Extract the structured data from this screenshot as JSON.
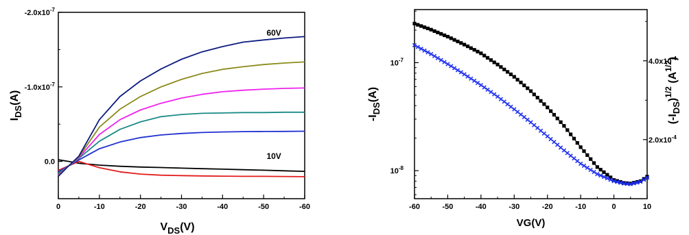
{
  "chart_data": [
    {
      "type": "line",
      "xlabel_main": "V",
      "xlabel_sub": "DS",
      "xlabel_unit": "(V)",
      "ylabel_main": "I",
      "ylabel_sub": "DS",
      "ylabel_unit": "(A)",
      "xlim": [
        0,
        -60
      ],
      "ylim": [
        5e-08,
        -2e-07
      ],
      "x_ticks": [
        {
          "value": 0,
          "label": "0"
        },
        {
          "value": -10,
          "label": "-10"
        },
        {
          "value": -20,
          "label": "-20"
        },
        {
          "value": -30,
          "label": "-30"
        },
        {
          "value": -40,
          "label": "-40"
        },
        {
          "value": -50,
          "label": "-50"
        },
        {
          "value": -60,
          "label": "-60"
        }
      ],
      "y_ticks": [
        {
          "value": -2e-07,
          "label": "-2.0x10",
          "exp": "-7"
        },
        {
          "value": -1e-07,
          "label": "-1.0x10",
          "exp": "-7"
        },
        {
          "value": 0,
          "label": "0.0",
          "exp": ""
        }
      ],
      "annotations": [
        {
          "text": "60V",
          "x": -52.5,
          "y": -1.725e-07
        },
        {
          "text": "10V",
          "x": -52.5,
          "y": -7.2e-09
        }
      ],
      "x": [
        0,
        -2.5,
        -5,
        -10,
        -15,
        -20,
        -25,
        -30,
        -35,
        -40,
        -45,
        -50,
        -55,
        -60
      ],
      "series": [
        {
          "color": "#000000",
          "values": [
            -2.2e-09,
            0.0,
            2.5e-09,
            5e-09,
            6.5e-09,
            7.5e-09,
            8.2e-09,
            9e-09,
            9.7e-09,
            1.04e-08,
            1.11e-08,
            1.18e-08,
            1.26e-08,
            1.33e-08
          ]
        },
        {
          "color": "#e31a1c",
          "values": [
            1.2e-08,
            6e-09,
            0.0,
            8.5e-09,
            1.4e-08,
            1.7e-08,
            1.85e-08,
            1.9e-08,
            1.95e-08,
            1.98e-08,
            2e-08,
            2e-08,
            2.02e-08,
            2.05e-08
          ]
        },
        {
          "color": "#1f2fd0",
          "values": [
            1.4e-08,
            6e-09,
            -2e-09,
            -1.7e-08,
            -2.6e-08,
            -3.2e-08,
            -3.55e-08,
            -3.75e-08,
            -3.88e-08,
            -3.95e-08,
            -4e-08,
            -4.02e-08,
            -4.03e-08,
            -4.05e-08
          ]
        },
        {
          "color": "#1a8a86",
          "values": [
            1.6e-08,
            6e-09,
            -4e-09,
            -2.7e-08,
            -4.3e-08,
            -5.3e-08,
            -6e-08,
            -6.3e-08,
            -6.45e-08,
            -6.5e-08,
            -6.55e-08,
            -6.55e-08,
            -6.6e-08,
            -6.6e-08
          ]
        },
        {
          "color": "#ee22ee",
          "values": [
            1.8e-08,
            6e-09,
            -5e-09,
            -3.6e-08,
            -5.6e-08,
            -6.9e-08,
            -7.8e-08,
            -8.5e-08,
            -9e-08,
            -9.35e-08,
            -9.55e-08,
            -9.7e-08,
            -9.8e-08,
            -9.85e-08
          ]
        },
        {
          "color": "#8b8a1a",
          "values": [
            1.9e-08,
            6e-09,
            -6e-09,
            -4.6e-08,
            -7e-08,
            -8.7e-08,
            -1e-07,
            -1.1e-07,
            -1.18e-07,
            -1.235e-07,
            -1.27e-07,
            -1.3e-07,
            -1.32e-07,
            -1.335e-07
          ]
        },
        {
          "color": "#0b1a7e",
          "values": [
            2e-08,
            6e-09,
            -7e-09,
            -5.6e-08,
            -8.7e-08,
            -1.08e-07,
            -1.24e-07,
            -1.37e-07,
            -1.47e-07,
            -1.54e-07,
            -1.6e-07,
            -1.63e-07,
            -1.655e-07,
            -1.675e-07
          ]
        }
      ]
    },
    {
      "type": "scatter",
      "xlabel": "VG(V)",
      "ylabel_main": "-I",
      "ylabel_sub": "DS",
      "ylabel_unit": "(A)",
      "y2label_open": "(-I",
      "y2label_sub": "DS",
      "y2label_close": ")",
      "y2label_sup": "1/2",
      "y2label_unit": "(A",
      "y2label_unit_sup": "1/2",
      "y2label_end": ")",
      "xlim": [
        -60,
        10
      ],
      "ylog": true,
      "ylim": [
        5.5e-09,
        3.1e-07
      ],
      "y2lim": [
        5e-05,
        0.00053
      ],
      "x_ticks": [
        {
          "value": -60,
          "label": "-60"
        },
        {
          "value": -50,
          "label": "-50"
        },
        {
          "value": -40,
          "label": "-40"
        },
        {
          "value": -30,
          "label": "-30"
        },
        {
          "value": -20,
          "label": "-20"
        },
        {
          "value": -10,
          "label": "-10"
        },
        {
          "value": 0,
          "label": "0"
        },
        {
          "value": 10,
          "label": "10"
        }
      ],
      "y_ticks": [
        {
          "value": 1e-07,
          "label": "10",
          "exp": "-7"
        },
        {
          "value": 1e-08,
          "label": "10",
          "exp": "-8"
        }
      ],
      "y2_ticks": [
        {
          "value": 0.0004,
          "label": "4.0x10",
          "exp": "-4"
        },
        {
          "value": 0.0002,
          "label": "2.0x10",
          "exp": "-4"
        }
      ],
      "series": [
        {
          "color": "#000000",
          "marker": "square",
          "axis": "left",
          "x": [
            -60,
            -55,
            -50,
            -45,
            -40,
            -35,
            -30,
            -25,
            -20,
            -15,
            -10,
            -5,
            0,
            3,
            5,
            8,
            10
          ],
          "values": [
            2.3e-07,
            2.02e-07,
            1.74e-07,
            1.47e-07,
            1.22e-07,
            9.6e-08,
            7.4e-08,
            5.45e-08,
            3.85e-08,
            2.6e-08,
            1.65e-08,
            1.08e-08,
            8.2e-09,
            7.7e-09,
            7.6e-09,
            8e-09,
            8.8e-09
          ]
        },
        {
          "color": "#1f2fee",
          "marker": "cross",
          "axis": "left",
          "x": [
            -60,
            -55,
            -50,
            -45,
            -40,
            -35,
            -30,
            -25,
            -20,
            -15,
            -10,
            -5,
            0,
            3,
            5,
            8,
            10
          ],
          "values": [
            1.45e-07,
            1.2e-07,
            9.7e-08,
            7.8e-08,
            6.2e-08,
            4.85e-08,
            3.7e-08,
            2.8e-08,
            2.08e-08,
            1.54e-08,
            1.16e-08,
            9.3e-09,
            8e-09,
            7.6e-09,
            7.5e-09,
            7.9e-09,
            8.6e-09
          ]
        }
      ]
    }
  ]
}
